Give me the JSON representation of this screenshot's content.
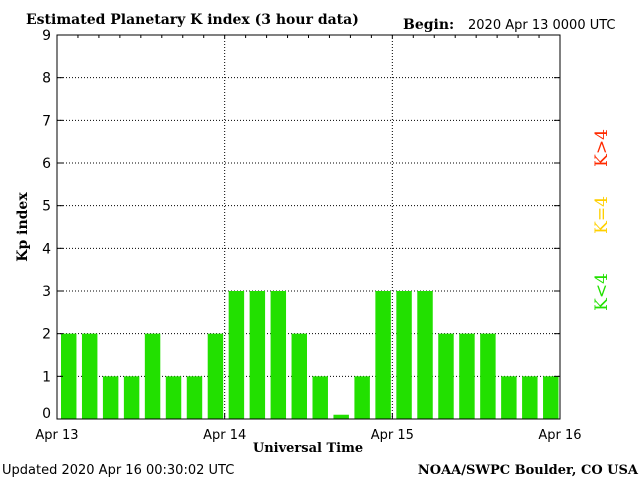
{
  "header": {
    "title": "Estimated Planetary K index (3 hour data)",
    "begin_label": "Begin:",
    "begin_value": "2020 Apr 13 0000 UTC"
  },
  "footer": {
    "updated": "Updated 2020 Apr 16 00:30:02 UTC",
    "source": "NOAA/SWPC Boulder, CO USA"
  },
  "legend": {
    "storm": "K>4",
    "active": "K=4",
    "quiet": "K<4",
    "colors": {
      "storm": "#ff2a00",
      "active": "#ffd000",
      "quiet": "#22e000"
    }
  },
  "chart_data": {
    "type": "bar",
    "title": "Estimated Planetary K index (3 hour data)",
    "xlabel": "Universal Time",
    "ylabel": "Kp index",
    "ylim": [
      0,
      9
    ],
    "yticks": [
      "0",
      "1",
      "2",
      "3",
      "4",
      "5",
      "6",
      "7",
      "8",
      "9"
    ],
    "xticks": [
      "Apr 13",
      "Apr 14",
      "Apr 15",
      "Apr 16"
    ],
    "grid": true,
    "bar_color": "#22e000",
    "values": [
      2,
      2,
      1,
      1,
      2,
      1,
      1,
      2,
      3,
      3,
      3,
      2,
      1,
      0.1,
      1,
      3,
      3,
      3,
      2,
      2,
      2,
      1,
      1,
      1
    ]
  }
}
